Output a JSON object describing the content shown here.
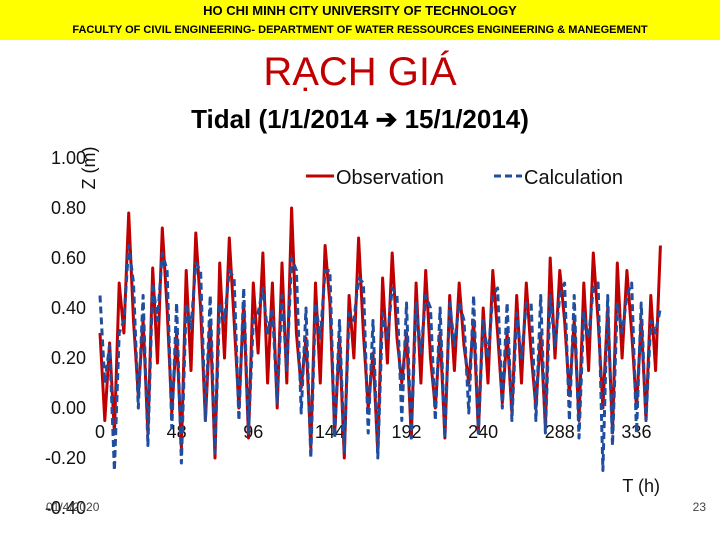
{
  "header": {
    "university": "HO CHI MINH CITY UNIVERSITY OF TECHNOLOGY",
    "faculty": "FACULTY OF CIVIL ENGINEERING- DEPARTMENT OF WATER RESSOURCES ENGINEERING & MANEGEMENT",
    "banner_color": "#ffff00"
  },
  "site_title": "RẠCH GIÁ",
  "footer": {
    "date": "01/4/2020",
    "page": "23"
  },
  "chart_data": {
    "type": "line",
    "title": "Tidal (1/1/2014 ➔ 15/1/2014)",
    "xlabel": "T (h)",
    "ylabel": "Z (m)",
    "xlim": [
      0,
      352
    ],
    "ylim": [
      -0.4,
      1.0
    ],
    "x_ticks": [
      "0",
      "48",
      "96",
      "144",
      "192",
      "240",
      "288",
      "336"
    ],
    "y_ticks": [
      "1.00",
      "0.80",
      "0.60",
      "0.40",
      "0.20",
      "0.00",
      "-0.20",
      "-0.40"
    ],
    "grid": false,
    "legend_position": "top-right",
    "series": [
      {
        "name": "Observation",
        "color": "#c00000",
        "style": "solid",
        "x": [
          0,
          3,
          6,
          9,
          12,
          15,
          18,
          21,
          24,
          27,
          30,
          33,
          36,
          39,
          42,
          45,
          48,
          51,
          54,
          57,
          60,
          63,
          66,
          69,
          72,
          75,
          78,
          81,
          84,
          87,
          90,
          93,
          96,
          99,
          102,
          105,
          108,
          111,
          114,
          117,
          120,
          123,
          126,
          129,
          132,
          135,
          138,
          141,
          144,
          147,
          150,
          153,
          156,
          159,
          162,
          165,
          168,
          171,
          174,
          177,
          180,
          183,
          186,
          189,
          192,
          195,
          198,
          201,
          204,
          207,
          210,
          213,
          216,
          219,
          222,
          225,
          228,
          231,
          234,
          237,
          240,
          243,
          246,
          249,
          252,
          255,
          258,
          261,
          264,
          267,
          270,
          273,
          276,
          279,
          282,
          285,
          288,
          291,
          294,
          297,
          300,
          303,
          306,
          309,
          312,
          315,
          318,
          321,
          324,
          327,
          330,
          333,
          336,
          339,
          342,
          345,
          348,
          351
        ],
        "values": [
          0.3,
          -0.05,
          0.26,
          -0.1,
          0.5,
          0.3,
          0.78,
          0.35,
          0.05,
          0.35,
          -0.1,
          0.56,
          0.18,
          0.72,
          0.4,
          -0.02,
          0.3,
          -0.16,
          0.55,
          0.15,
          0.7,
          0.4,
          -0.05,
          0.35,
          -0.2,
          0.58,
          0.2,
          0.68,
          0.35,
          0.0,
          0.42,
          -0.12,
          0.5,
          0.22,
          0.62,
          0.1,
          0.5,
          0.0,
          0.58,
          0.1,
          0.8,
          0.3,
          0.08,
          0.28,
          -0.16,
          0.5,
          0.1,
          0.65,
          0.42,
          -0.1,
          0.28,
          -0.2,
          0.45,
          0.2,
          0.68,
          0.3,
          0.0,
          0.22,
          -0.18,
          0.52,
          0.18,
          0.62,
          0.28,
          0.1,
          0.3,
          -0.12,
          0.5,
          0.1,
          0.55,
          0.2,
          0.0,
          0.3,
          -0.12,
          0.45,
          0.15,
          0.5,
          0.25,
          0.1,
          0.35,
          -0.1,
          0.4,
          0.1,
          0.55,
          0.3,
          0.02,
          0.3,
          -0.02,
          0.45,
          0.1,
          0.5,
          0.22,
          0.0,
          0.3,
          -0.08,
          0.6,
          0.2,
          0.55,
          0.35,
          0.05,
          0.35,
          -0.05,
          0.5,
          0.15,
          0.62,
          0.35,
          0.0,
          0.4,
          -0.1,
          0.58,
          0.2,
          0.55,
          0.3,
          0.0,
          0.35,
          -0.05,
          0.45,
          0.15,
          0.65
        ]
      },
      {
        "name": "Calculation",
        "color": "#1f4e9f",
        "style": "dashed",
        "x": [
          0,
          3,
          6,
          9,
          12,
          15,
          18,
          21,
          24,
          27,
          30,
          33,
          36,
          39,
          42,
          45,
          48,
          51,
          54,
          57,
          60,
          63,
          66,
          69,
          72,
          75,
          78,
          81,
          84,
          87,
          90,
          93,
          96,
          99,
          102,
          105,
          108,
          111,
          114,
          117,
          120,
          123,
          126,
          129,
          132,
          135,
          138,
          141,
          144,
          147,
          150,
          153,
          156,
          159,
          162,
          165,
          168,
          171,
          174,
          177,
          180,
          183,
          186,
          189,
          192,
          195,
          198,
          201,
          204,
          207,
          210,
          213,
          216,
          219,
          222,
          225,
          228,
          231,
          234,
          237,
          240,
          243,
          246,
          249,
          252,
          255,
          258,
          261,
          264,
          267,
          270,
          273,
          276,
          279,
          282,
          285,
          288,
          291,
          294,
          297,
          300,
          303,
          306,
          309,
          312,
          315,
          318,
          321,
          324,
          327,
          330,
          333,
          336,
          339,
          342,
          345,
          348,
          351
        ],
        "values": [
          0.45,
          0.1,
          0.25,
          -0.25,
          0.3,
          0.35,
          0.65,
          0.5,
          0.0,
          0.45,
          -0.15,
          0.5,
          0.35,
          0.62,
          0.55,
          -0.08,
          0.42,
          -0.22,
          0.42,
          0.32,
          0.58,
          0.55,
          -0.05,
          0.45,
          -0.18,
          0.42,
          0.35,
          0.55,
          0.52,
          -0.05,
          0.48,
          -0.1,
          0.35,
          0.38,
          0.48,
          0.3,
          0.4,
          0.02,
          0.45,
          0.15,
          0.6,
          0.55,
          -0.02,
          0.4,
          -0.2,
          0.42,
          0.28,
          0.55,
          0.55,
          -0.12,
          0.35,
          -0.18,
          0.38,
          0.35,
          0.52,
          0.5,
          -0.1,
          0.35,
          -0.2,
          0.38,
          0.28,
          0.48,
          0.45,
          -0.05,
          0.42,
          -0.12,
          0.42,
          0.22,
          0.45,
          0.4,
          -0.05,
          0.4,
          -0.12,
          0.42,
          0.25,
          0.42,
          0.35,
          -0.02,
          0.45,
          -0.1,
          0.35,
          0.2,
          0.45,
          0.48,
          0.0,
          0.42,
          -0.05,
          0.38,
          0.2,
          0.42,
          0.42,
          -0.05,
          0.45,
          -0.1,
          0.45,
          0.25,
          0.45,
          0.5,
          -0.05,
          0.45,
          -0.12,
          0.38,
          0.28,
          0.48,
          0.5,
          -0.25,
          0.45,
          -0.15,
          0.42,
          0.3,
          0.45,
          0.5,
          -0.1,
          0.42,
          -0.05,
          0.35,
          0.3,
          0.4
        ]
      }
    ]
  }
}
